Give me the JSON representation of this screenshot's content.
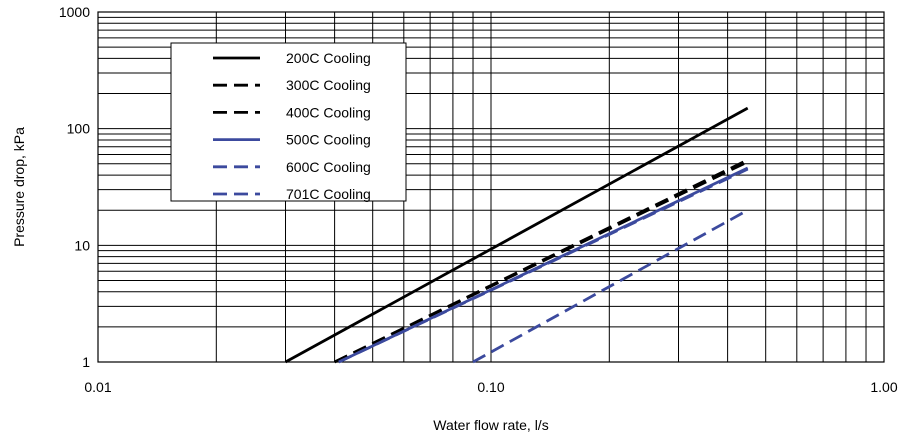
{
  "chart_data": {
    "type": "line",
    "title": "",
    "xlabel": "Water flow rate, l/s",
    "ylabel": "Pressure drop, kPa",
    "x_scale": "log",
    "y_scale": "log",
    "xlim": [
      0.01,
      1.0
    ],
    "ylim": [
      1,
      1000
    ],
    "x_ticks": [
      0.01,
      0.1,
      1.0
    ],
    "x_tick_labels": [
      "0.01",
      "0.10",
      "1.00"
    ],
    "y_ticks": [
      1,
      10,
      100,
      1000
    ],
    "y_tick_labels": [
      "1",
      "10",
      "100",
      "1000"
    ],
    "grid": true,
    "legend_position": "top-left",
    "series": [
      {
        "name": "200C Cooling",
        "color": "#000000",
        "dash": "solid",
        "x": [
          0.03,
          0.45
        ],
        "y": [
          1.0,
          150
        ]
      },
      {
        "name": "300C Cooling",
        "color": "#000000",
        "dash": "dashed",
        "x": [
          0.04,
          0.45
        ],
        "y": [
          1.0,
          54
        ]
      },
      {
        "name": "400C Cooling",
        "color": "#000000",
        "dash": "dashed",
        "x": [
          0.04,
          0.45
        ],
        "y": [
          1.0,
          52
        ]
      },
      {
        "name": "500C Cooling",
        "color": "#3c4a9e",
        "dash": "solid",
        "x": [
          0.041,
          0.45
        ],
        "y": [
          1.0,
          46
        ]
      },
      {
        "name": "600C Cooling",
        "color": "#3c4a9e",
        "dash": "dashed",
        "x": [
          0.041,
          0.45
        ],
        "y": [
          1.0,
          45
        ]
      },
      {
        "name": "701C Cooling",
        "color": "#3c4a9e",
        "dash": "dashed",
        "x": [
          0.09,
          0.45
        ],
        "y": [
          1.0,
          20
        ]
      }
    ]
  }
}
